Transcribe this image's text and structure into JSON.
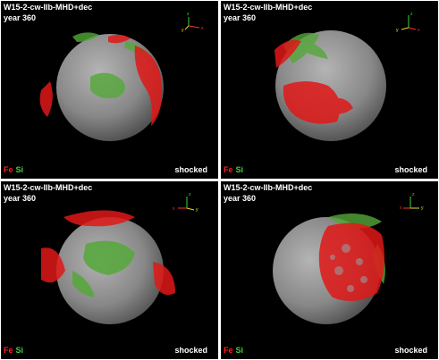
{
  "colors": {
    "background": "#000000",
    "sphere": "#8a8a8a",
    "fe": "#ff2020",
    "si": "#3cd43c",
    "text": "#ffffff"
  },
  "panels": [
    {
      "title": "W15-2-cw-IIb-MHD+dec",
      "year": "year 360",
      "legend_fe": "Fe",
      "legend_si": "Si",
      "status": "shocked",
      "axis_labels": [
        "z",
        "y",
        "x"
      ]
    },
    {
      "title": "W15-2-cw-IIb-MHD+dec",
      "year": "year 360",
      "legend_fe": "Fe",
      "legend_si": "Si",
      "status": "shocked",
      "axis_labels": [
        "z",
        "y",
        "x"
      ]
    },
    {
      "title": "W15-2-cw-IIb-MHD+dec",
      "year": "year 360",
      "legend_fe": "Fe",
      "legend_si": "Si",
      "status": "shocked",
      "axis_labels": [
        "z",
        "x",
        "y"
      ]
    },
    {
      "title": "W15-2-cw-IIb-MHD+dec",
      "year": "year 360",
      "legend_fe": "Fe",
      "legend_si": "Si",
      "status": "shocked",
      "axis_labels": [
        "z",
        "x",
        "y"
      ]
    }
  ]
}
